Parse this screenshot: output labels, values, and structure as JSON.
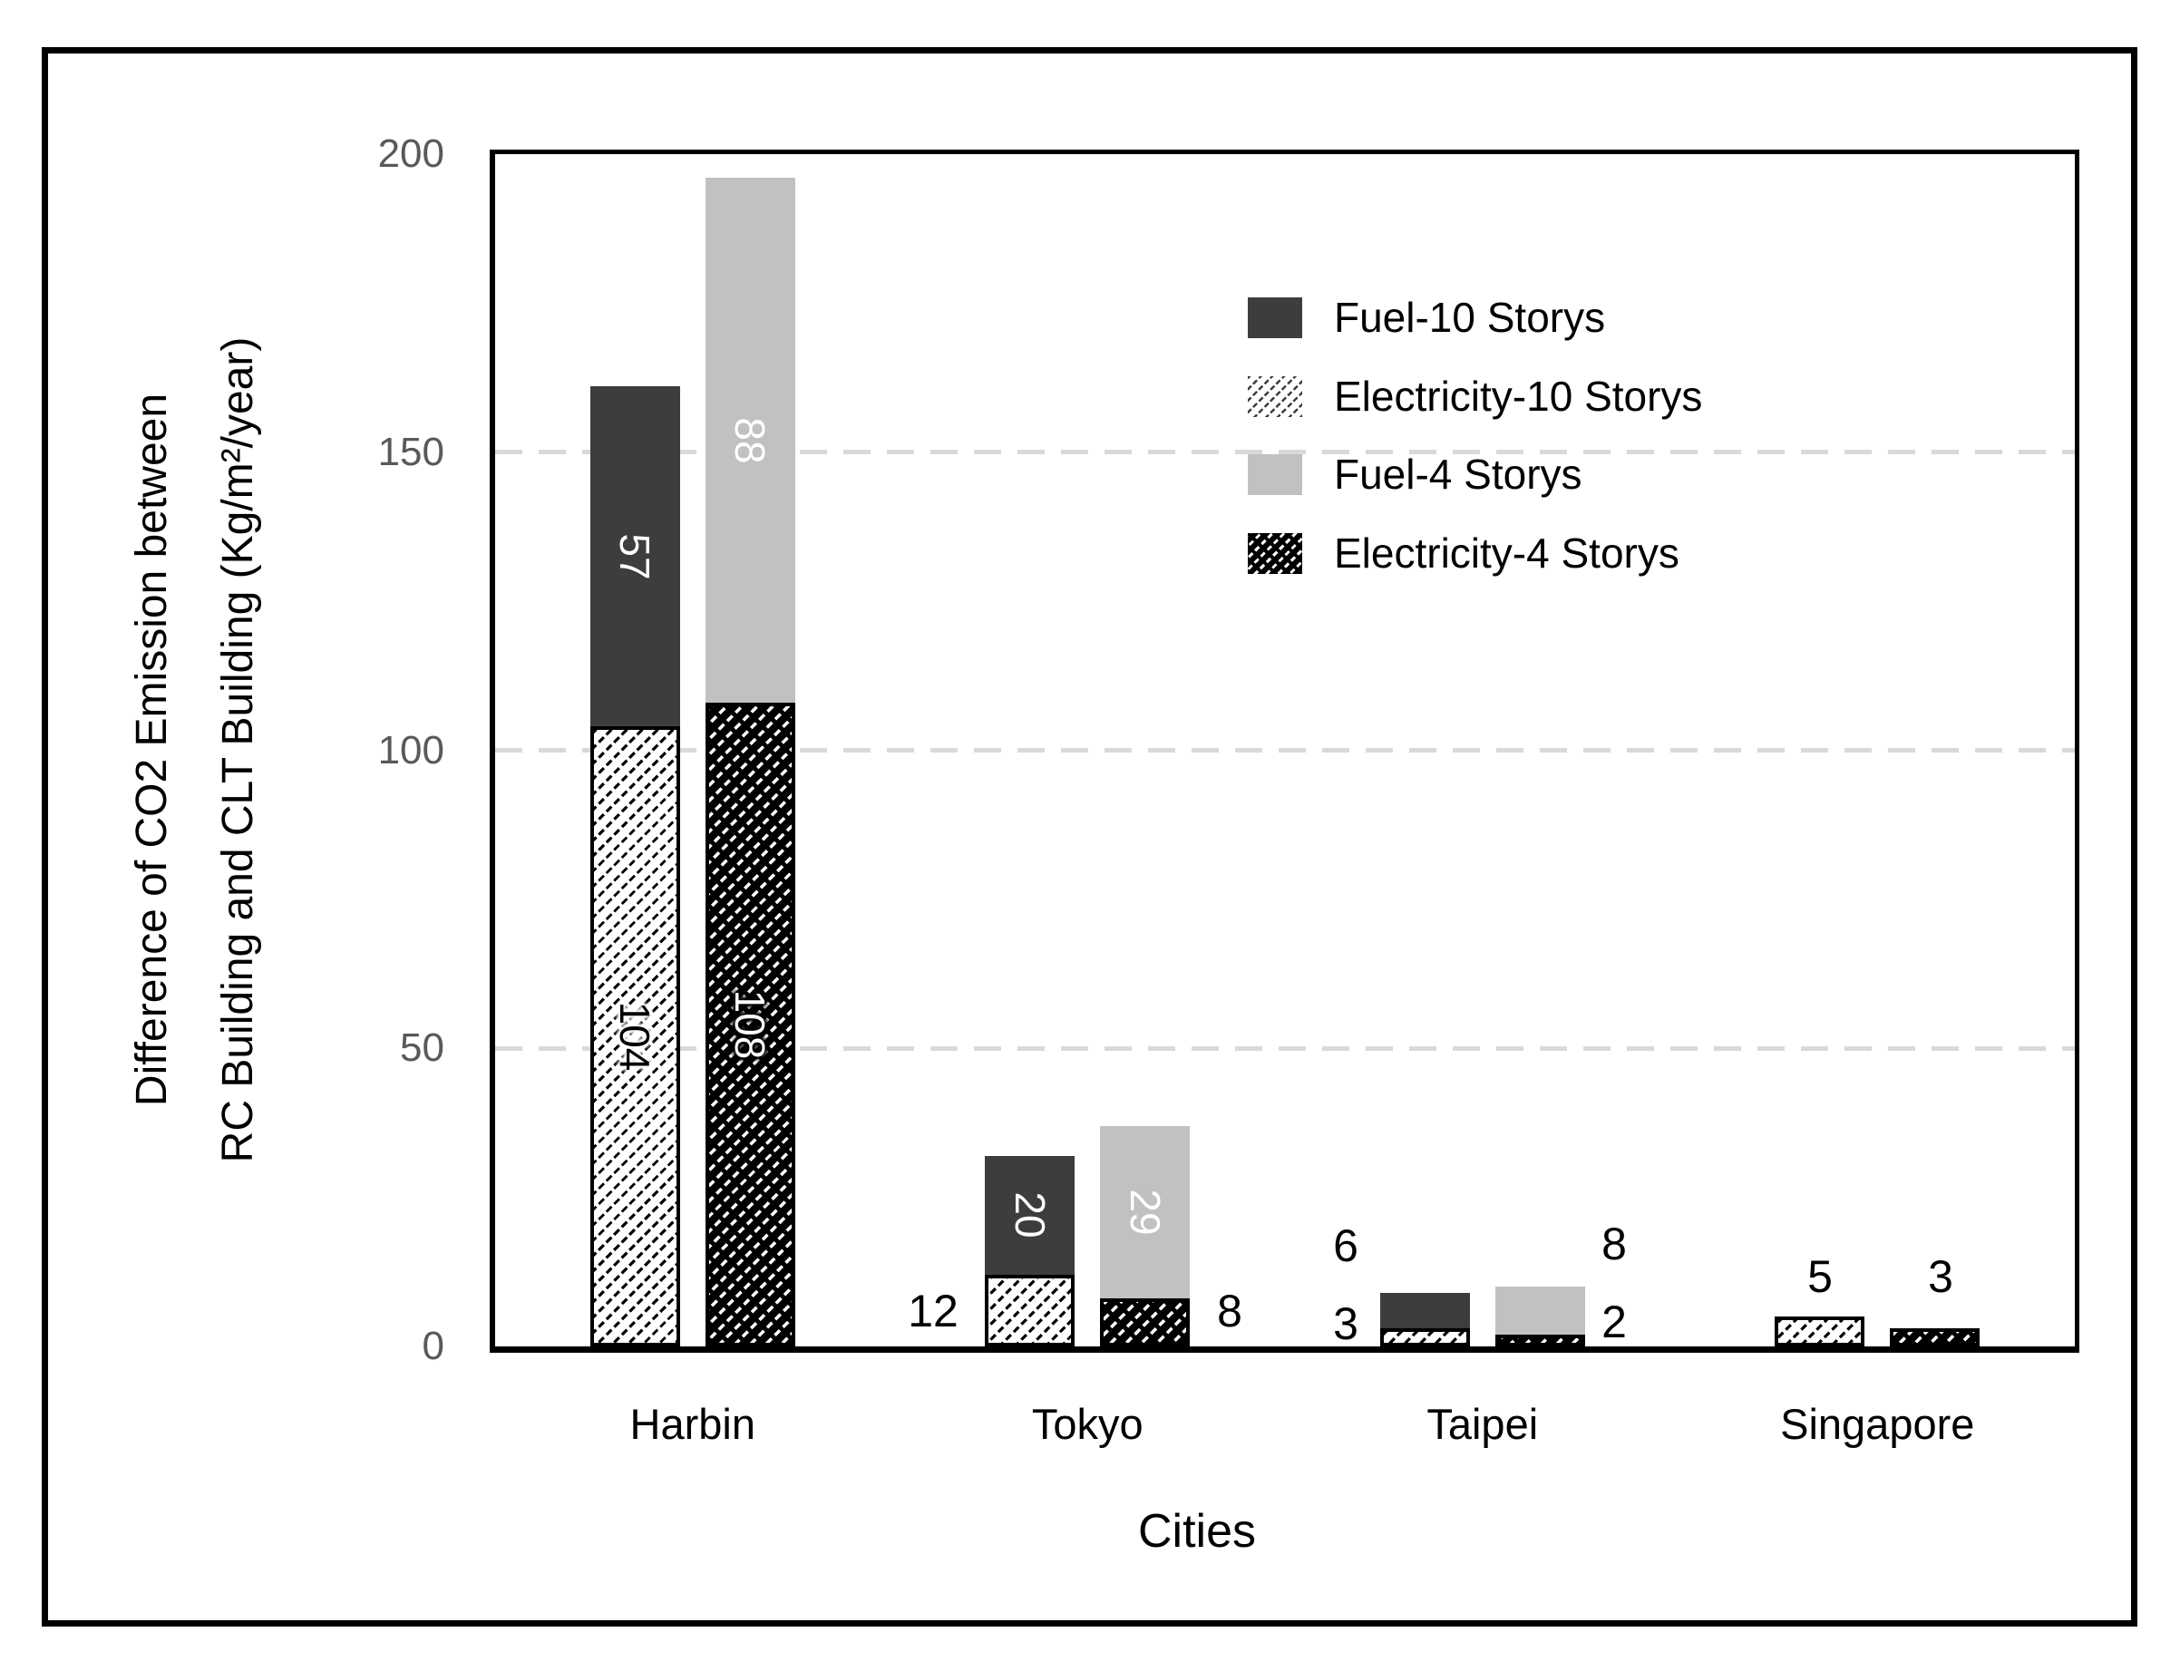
{
  "figure": {
    "xlabel": "Cities",
    "ylabel_line1": "Difference of CO2 Emission between",
    "ylabel_line2": "RC Building and CLT Building (Kg/m²/year)"
  },
  "colors": {
    "dark_gray_fill": "#3d3d3d",
    "light_gray_fill": "#c1c1c1",
    "hatch_black": "#000000",
    "gridline_gray": "#d9d9d9",
    "tick_label_gray": "#595959",
    "frame_black": "#000000"
  },
  "chart_data": {
    "type": "bar",
    "variant": "grouped-stacked",
    "title": "",
    "xlabel": "Cities",
    "ylabel": "Difference of CO2 Emission between RC Building and CLT Building (Kg/m²/year)",
    "ylim": [
      0,
      200
    ],
    "yticks": [
      0,
      50,
      100,
      150,
      200
    ],
    "gridlines": {
      "values": [
        50,
        100,
        150
      ],
      "style": "dashed",
      "color": "#d9d9d9"
    },
    "categories": [
      "Harbin",
      "Tokyo",
      "Taipei",
      "Singapore"
    ],
    "bars_per_category": [
      "10 Storys",
      "4 Storys"
    ],
    "series": [
      {
        "name": "Fuel-10 Storys",
        "bar": "10 Storys",
        "stack_position": "top",
        "pattern": "solid-dark",
        "values": [
          57,
          20,
          6,
          0
        ]
      },
      {
        "name": "Electricity-10 Storys",
        "bar": "10 Storys",
        "stack_position": "bottom",
        "pattern": "hatch-light",
        "values": [
          104,
          12,
          3,
          5
        ]
      },
      {
        "name": "Fuel-4 Storys",
        "bar": "4 Storys",
        "stack_position": "top",
        "pattern": "solid-light",
        "values": [
          88,
          29,
          8,
          0
        ]
      },
      {
        "name": "Electricity-4 Storys",
        "bar": "4 Storys",
        "stack_position": "bottom",
        "pattern": "hatch-dark",
        "values": [
          108,
          8,
          2,
          3
        ]
      }
    ],
    "stack_totals": {
      "10 Storys": [
        161,
        32,
        9,
        5
      ],
      "4 Storys": [
        196,
        37,
        10,
        3
      ]
    },
    "legend_position": "upper-right-inside",
    "legend_entries": [
      "Fuel-10 Storys",
      "Electricity-10 Storys",
      "Fuel-4 Storys",
      "Electricity-4 Storys"
    ]
  }
}
